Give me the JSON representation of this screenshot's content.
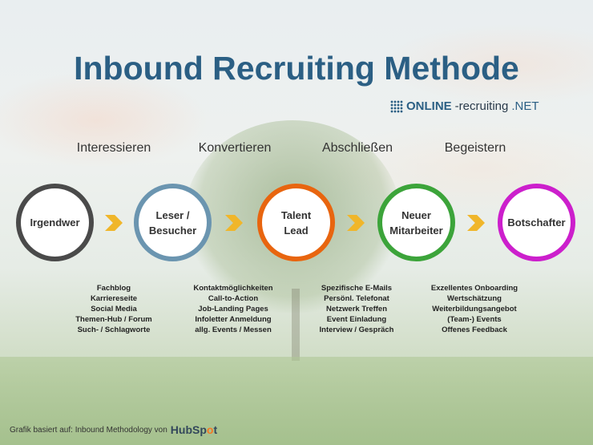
{
  "title": "Inbound Recruiting Methode",
  "brand": {
    "prefix": "ONLINE",
    "suffix": "-recruiting",
    "tld": ".NET"
  },
  "stages": [
    "Interessieren",
    "Konvertieren",
    "Abschließen",
    "Begeistern"
  ],
  "circles": [
    {
      "line1": "Irgendwer",
      "line2": "",
      "color": "#4a4a4a"
    },
    {
      "line1": "Leser /",
      "line2": "Besucher",
      "color": "#6b95b0"
    },
    {
      "line1": "Talent",
      "line2": "Lead",
      "color": "#e8650f"
    },
    {
      "line1": "Neuer",
      "line2": "Mitarbeiter",
      "color": "#3ca43a"
    },
    {
      "line1": "Botschafter",
      "line2": "",
      "color": "#cc1fcc"
    }
  ],
  "arrow_color": "#f0b62a",
  "lists": [
    [
      "Fachblog",
      "Karriereseite",
      "Social Media",
      "Themen-Hub / Forum",
      "Such- / Schlagworte"
    ],
    [
      "Kontaktmöglichkeiten",
      "Call-to-Action",
      "Job-Landing Pages",
      "Infoletter Anmeldung",
      "allg. Events / Messen"
    ],
    [
      "Spezifische E-Mails",
      "Persönl. Telefonat",
      "Netzwerk Treffen",
      "Event Einladung",
      "Interview / Gespräch"
    ],
    [
      "Exzellentes Onboarding",
      "Wertschätzung",
      "Weiterbildungsangebot",
      "(Team-) Events",
      "Offenes Feedback"
    ]
  ],
  "footer": {
    "text": "Grafik basiert auf: Inbound Methodology von",
    "logo_a": "HubSp",
    "logo_b": "o",
    "logo_c": "t"
  }
}
